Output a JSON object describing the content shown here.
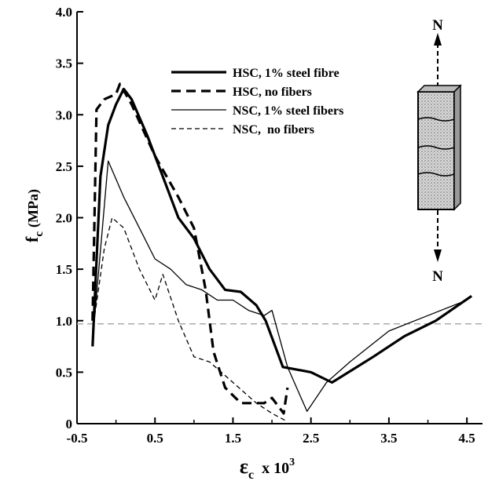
{
  "chart_data": {
    "type": "line",
    "xlabel": {
      "symbol": "ε",
      "subscript": "c",
      "unit": "x 10",
      "exponent": "3"
    },
    "ylabel": {
      "symbol": "f",
      "subscript": "c",
      "unit": "(MPa)"
    },
    "xlim": [
      -0.5,
      4.7
    ],
    "ylim": [
      0,
      4.0
    ],
    "xticks": [
      -0.5,
      0.5,
      1.5,
      2.5,
      3.5,
      4.5
    ],
    "xminor_ticks": [
      0,
      1,
      2,
      3,
      4
    ],
    "yticks": [
      0,
      0.5,
      {
        "value": 1,
        "label": "1.0"
      },
      1.5,
      {
        "value": 2,
        "label": "2.0"
      },
      2.5,
      {
        "value": 3,
        "label": "3.0"
      },
      3.5,
      {
        "value": 4,
        "label": "4.0"
      }
    ],
    "hline": 0.97,
    "hline_color": "#aaaaaa",
    "legend": "top-center",
    "inset_labels": [
      "N",
      "N"
    ],
    "series": [
      {
        "name": "HSC, 1% steel fibre",
        "color": "#000000",
        "width": 3.2,
        "dash": "none",
        "x": [
          -0.3,
          -0.2,
          -0.1,
          0,
          0.1,
          0.2,
          0.4,
          0.6,
          0.8,
          1.0,
          1.2,
          1.4,
          1.6,
          1.8,
          1.92,
          2.14,
          2.5,
          2.77,
          3.3,
          3.7,
          4.1,
          4.56
        ],
        "values": [
          0.75,
          2.4,
          2.9,
          3.1,
          3.25,
          3.15,
          2.8,
          2.4,
          2.0,
          1.8,
          1.5,
          1.3,
          1.28,
          1.15,
          1.0,
          0.55,
          0.5,
          0.4,
          0.65,
          0.85,
          1.0,
          1.24
        ]
      },
      {
        "name": "HSC, no fibers",
        "color": "#000000",
        "width": 3.2,
        "dash": "12 7",
        "x": [
          -0.3,
          -0.25,
          -0.15,
          0,
          0.05,
          0.2,
          0.5,
          0.8,
          1.0,
          1.15,
          1.25,
          1.4,
          1.6,
          1.9,
          2.0,
          2.15,
          2.2
        ],
        "values": [
          1.0,
          3.05,
          3.15,
          3.2,
          3.3,
          3.1,
          2.6,
          2.2,
          1.9,
          1.3,
          0.7,
          0.35,
          0.2,
          0.2,
          0.25,
          0.1,
          0.35
        ]
      },
      {
        "name": "NSC, 1% steel fibers",
        "color": "#000000",
        "width": 1.3,
        "dash": "none",
        "x": [
          -0.3,
          -0.1,
          0.1,
          0.3,
          0.5,
          0.7,
          0.9,
          1.1,
          1.3,
          1.5,
          1.7,
          1.9,
          2.0,
          2.2,
          2.45,
          2.7,
          3.0,
          3.5,
          4.0,
          4.5
        ],
        "values": [
          0.8,
          2.55,
          2.2,
          1.9,
          1.6,
          1.5,
          1.35,
          1.3,
          1.2,
          1.2,
          1.1,
          1.05,
          1.1,
          0.55,
          0.12,
          0.4,
          0.6,
          0.9,
          1.05,
          1.2
        ]
      },
      {
        "name": "NSC,  no fibers",
        "color": "#000000",
        "width": 1.3,
        "dash": "6 4",
        "x": [
          -0.3,
          -0.15,
          -0.05,
          0.1,
          0.3,
          0.5,
          0.6,
          0.8,
          1.0,
          1.2,
          1.5,
          1.8,
          2.0,
          2.2
        ],
        "values": [
          0.9,
          1.7,
          2.0,
          1.9,
          1.5,
          1.2,
          1.45,
          1.0,
          0.65,
          0.6,
          0.4,
          0.2,
          0.1,
          0.02
        ]
      }
    ]
  }
}
